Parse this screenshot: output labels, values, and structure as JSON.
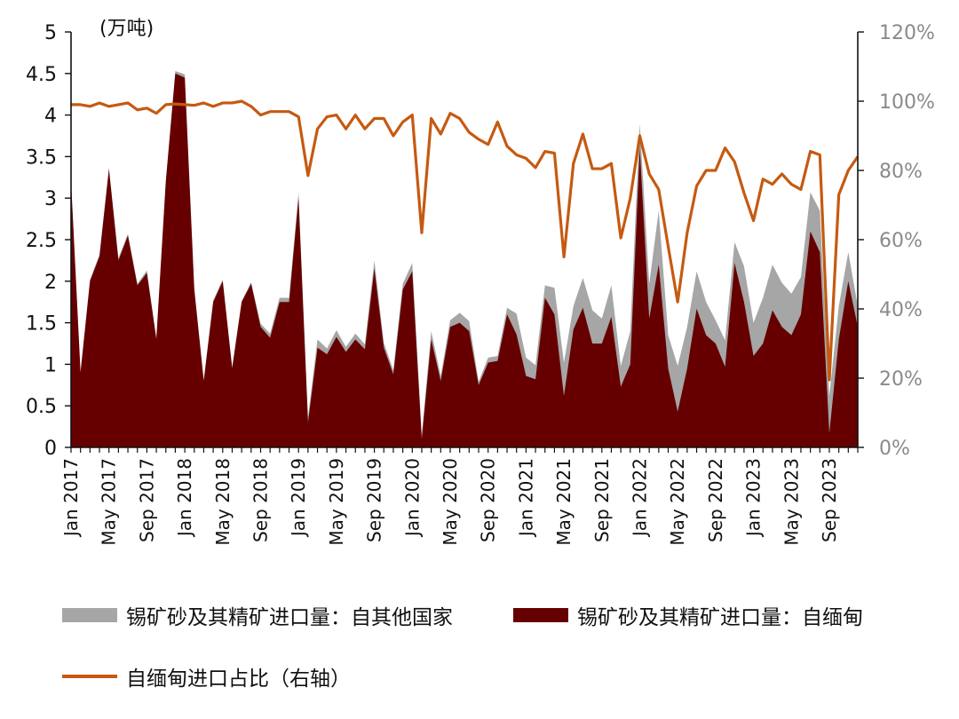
{
  "chart_data": {
    "type": "area",
    "unit_label": "(万吨)",
    "x": [
      "Jan 2017",
      "Feb 2017",
      "Mar 2017",
      "Apr 2017",
      "May 2017",
      "Jun 2017",
      "Jul 2017",
      "Aug 2017",
      "Sep 2017",
      "Oct 2017",
      "Nov 2017",
      "Dec 2017",
      "Jan 2018",
      "Feb 2018",
      "Mar 2018",
      "Apr 2018",
      "May 2018",
      "Jun 2018",
      "Jul 2018",
      "Aug 2018",
      "Sep 2018",
      "Oct 2018",
      "Nov 2018",
      "Dec 2018",
      "Jan 2019",
      "Feb 2019",
      "Mar 2019",
      "Apr 2019",
      "May 2019",
      "Jun 2019",
      "Jul 2019",
      "Aug 2019",
      "Sep 2019",
      "Oct 2019",
      "Nov 2019",
      "Dec 2019",
      "Jan 2020",
      "Feb 2020",
      "Mar 2020",
      "Apr 2020",
      "May 2020",
      "Jun 2020",
      "Jul 2020",
      "Aug 2020",
      "Sep 2020",
      "Oct 2020",
      "Nov 2020",
      "Dec 2020",
      "Jan 2021",
      "Feb 2021",
      "Mar 2021",
      "Apr 2021",
      "May 2021",
      "Jun 2021",
      "Jul 2021",
      "Aug 2021",
      "Sep 2021",
      "Oct 2021",
      "Nov 2021",
      "Dec 2021",
      "Jan 2022",
      "Feb 2022",
      "Mar 2022",
      "Apr 2022",
      "May 2022",
      "Jun 2022",
      "Jul 2022",
      "Aug 2022",
      "Sep 2022",
      "Oct 2022",
      "Nov 2022",
      "Dec 2022",
      "Jan 2023",
      "Feb 2023",
      "Mar 2023",
      "Apr 2023",
      "May 2023",
      "Jun 2023",
      "Jul 2023",
      "Aug 2023",
      "Sep 2023",
      "Oct 2023",
      "Nov 2023",
      "Dec 2023"
    ],
    "x_tick_labels": [
      "Jan 2017",
      "May 2017",
      "Sep 2017",
      "Jan 2018",
      "May 2018",
      "Sep 2018",
      "Jan 2019",
      "May 2019",
      "Sep 2019",
      "Jan 2020",
      "May 2020",
      "Sep 2020",
      "Jan 2021",
      "May 2021",
      "Sep 2021",
      "Jan 2022",
      "May 2022",
      "Sep 2022",
      "Jan 2023",
      "May 2023",
      "Sep 2023"
    ],
    "y_ticks": [
      "0",
      "0.5",
      "1",
      "1.5",
      "2",
      "2.5",
      "3",
      "3.5",
      "4",
      "4.5",
      "5"
    ],
    "y2_ticks": [
      "0%",
      "20%",
      "40%",
      "60%",
      "80%",
      "100%",
      "120%"
    ],
    "ylim": [
      0,
      5
    ],
    "y2lim": [
      0,
      120
    ],
    "series": [
      {
        "name": "锡矿砂及其精矿进口量：自其他国家",
        "kind": "stacked-area",
        "color": "#a6a6a6",
        "values": [
          0.02,
          0.01,
          0.02,
          0.02,
          0.02,
          0.03,
          0.02,
          0.02,
          0.03,
          0.02,
          0.01,
          0.03,
          0.04,
          0.02,
          0.01,
          0.02,
          0.02,
          0.02,
          0.01,
          0.02,
          0.04,
          0.05,
          0.05,
          0.05,
          0.07,
          0.06,
          0.1,
          0.07,
          0.08,
          0.06,
          0.07,
          0.06,
          0.1,
          0.06,
          0.05,
          0.07,
          0.1,
          0.05,
          0.1,
          0.06,
          0.08,
          0.12,
          0.12,
          0.04,
          0.06,
          0.06,
          0.08,
          0.25,
          0.22,
          0.17,
          0.15,
          0.32,
          0.4,
          0.28,
          0.36,
          0.4,
          0.3,
          0.38,
          0.25,
          0.4,
          0.3,
          0.42,
          0.65,
          0.4,
          0.55,
          0.5,
          0.45,
          0.4,
          0.28,
          0.32,
          0.25,
          0.43,
          0.4,
          0.55,
          0.55,
          0.53,
          0.5,
          0.45,
          0.47,
          0.5,
          0.45,
          0.4,
          0.35,
          0.25
        ]
      },
      {
        "name": "锡矿砂及其精矿进口量：自缅甸",
        "kind": "stacked-area",
        "color": "#660000",
        "values": [
          3.2,
          0.9,
          2.0,
          2.3,
          3.35,
          2.25,
          2.55,
          1.95,
          2.1,
          1.3,
          3.2,
          4.5,
          4.45,
          1.9,
          0.8,
          1.75,
          2.0,
          0.95,
          1.75,
          1.97,
          1.45,
          1.32,
          1.75,
          1.75,
          3.0,
          0.3,
          1.2,
          1.12,
          1.33,
          1.15,
          1.3,
          1.18,
          2.15,
          1.2,
          0.88,
          1.9,
          2.12,
          0.1,
          1.3,
          0.8,
          1.45,
          1.5,
          1.4,
          0.75,
          1.02,
          1.04,
          1.6,
          1.36,
          0.86,
          0.82,
          1.8,
          1.6,
          0.62,
          1.42,
          1.68,
          1.25,
          1.25,
          1.57,
          0.73,
          1.0,
          3.6,
          1.55,
          2.2,
          0.95,
          0.43,
          0.95,
          1.67,
          1.35,
          1.25,
          0.97,
          2.22,
          1.75,
          1.1,
          1.25,
          1.65,
          1.45,
          1.35,
          1.6,
          2.6,
          2.35,
          0.17,
          1.3,
          2.0,
          1.45
        ]
      },
      {
        "name": "自缅甸进口占比（右轴）",
        "kind": "line",
        "axis": "right",
        "color": "#c55a11",
        "values": [
          99,
          99,
          98.5,
          99.5,
          98.5,
          99,
          99.5,
          97.5,
          98,
          96.5,
          99,
          99.2,
          99,
          98.8,
          99.5,
          98.5,
          99.5,
          99.5,
          100,
          98.5,
          96,
          97,
          97,
          97,
          95.5,
          78.5,
          92,
          95.5,
          96,
          92,
          96,
          92,
          95,
          95,
          90,
          94,
          96,
          62,
          95,
          90.5,
          96.5,
          95,
          91,
          89,
          87.5,
          94,
          87,
          84.5,
          83.5,
          80.8,
          85.5,
          85,
          55,
          82,
          90.5,
          80.5,
          80.5,
          82,
          60.5,
          72,
          90,
          79,
          74.5,
          58,
          42,
          62,
          75.5,
          80,
          80,
          86.5,
          82.5,
          73.5,
          65.5,
          77.5,
          76,
          79,
          76,
          74.5,
          85.5,
          84.5,
          19.5,
          73,
          80,
          84
        ]
      }
    ],
    "legend": {
      "placement": "bottom",
      "rows": 2
    }
  },
  "legend_labels": {
    "other": "锡矿砂及其精矿进口量：自其他国家",
    "myanmar": "锡矿砂及其精矿进口量：自缅甸",
    "share": "自缅甸进口占比（右轴）"
  },
  "colors": {
    "other": "#a6a6a6",
    "myanmar": "#660000",
    "share": "#c55a11",
    "axis": "#111111",
    "y2_text": "#8a8a8a"
  }
}
